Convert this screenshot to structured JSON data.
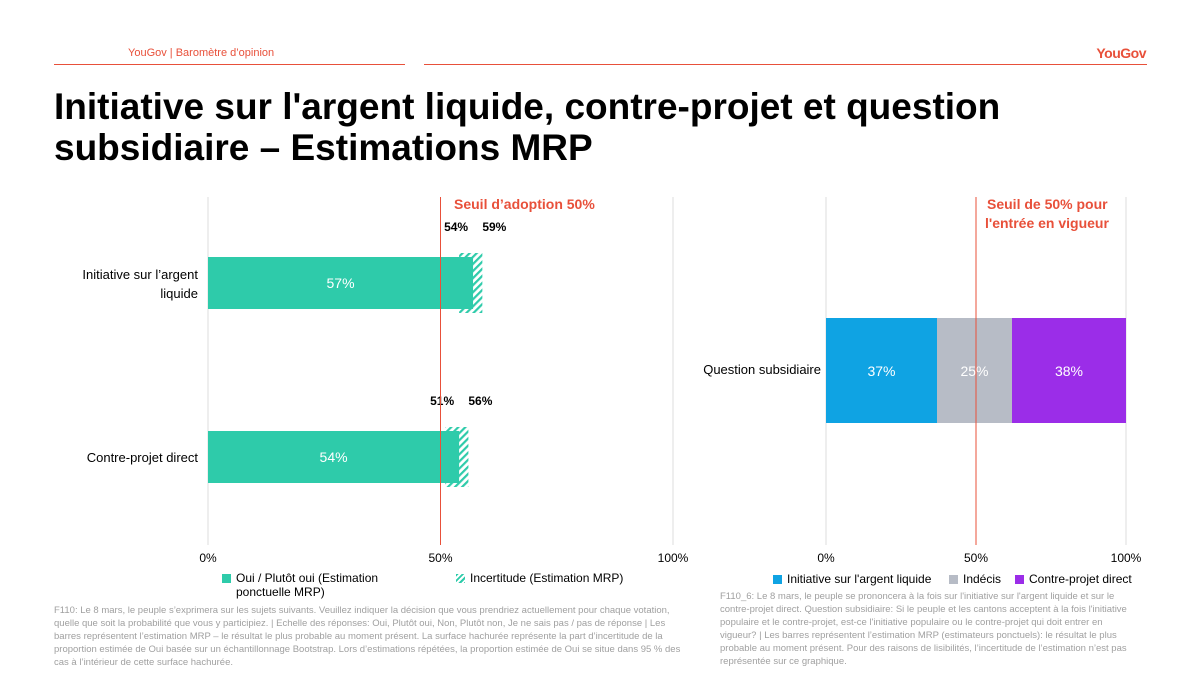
{
  "header": {
    "source": "YouGov | Baromètre d’opinion",
    "logo": "YouGov"
  },
  "title": "Initiative sur l'argent liquide, contre-projet et question subsidiaire – Estimations MRP",
  "chart_data": [
    {
      "type": "bar",
      "orientation": "horizontal",
      "categories": [
        "Initiative sur l’argent liquide",
        "Contre-projet direct"
      ],
      "values": [
        57,
        54
      ],
      "value_labels": [
        "57%",
        "54%"
      ],
      "uncertainty": [
        [
          54,
          59
        ],
        [
          51,
          56
        ]
      ],
      "uncertainty_labels": [
        [
          "54%",
          "59%"
        ],
        [
          "51%",
          "56%"
        ]
      ],
      "threshold": 50,
      "threshold_label": "Seuil d’adoption 50%",
      "xlim": [
        0,
        100
      ],
      "xticks": [
        "0%",
        "50%",
        "100%"
      ],
      "legend": [
        "Oui / Plutôt oui (Estimation ponctuelle MRP)",
        "Incertitude (Estimation MRP)"
      ],
      "colors": {
        "bar": "#2ecbaa",
        "threshold": "#e8503a"
      }
    },
    {
      "type": "bar",
      "orientation": "horizontal",
      "stacked": true,
      "categories": [
        "Question subsidiaire"
      ],
      "series": [
        {
          "name": "Initiative sur l'argent liquide",
          "values": [
            37
          ],
          "label": "37%",
          "color": "#0fa3e3"
        },
        {
          "name": "Indécis",
          "values": [
            25
          ],
          "label": "25%",
          "color": "#b7bcc6"
        },
        {
          "name": "Contre-projet direct",
          "values": [
            38
          ],
          "label": "38%",
          "color": "#9b2de8"
        }
      ],
      "threshold": 50,
      "threshold_label": [
        "Seuil de 50% pour",
        "l'entrée en vigueur"
      ],
      "xlim": [
        0,
        100
      ],
      "xticks": [
        "0%",
        "50%",
        "100%"
      ]
    }
  ],
  "footnotes": {
    "left": "F110: Le 8 mars, le peuple s’exprimera sur les sujets suivants. Veuillez indiquer la décision que vous prendriez actuellement pour chaque votation, quelle que soit la probabilité que vous y participiez. | Echelle des réponses: Oui, Plutôt oui, Non, Plutôt non, Je ne sais pas / pas de réponse | Les barres représentent l’estimation MRP – le résultat le plus probable au moment présent. La surface hachurée représente la part d’incertitude de la proportion estimée de Oui basée sur un échantillonnage Bootstrap. Lors d’estimations répétées, la proportion estimée de Oui se situe dans 95 % des cas à l’intérieur de cette surface hachurée.",
    "right": "F110_6: Le 8 mars, le peuple se prononcera à la fois sur l'initiative sur l'argent liquide et sur le contre-projet direct. Question subsidiaire: Si le peuple et les cantons acceptent à la fois l'initiative populaire et le contre-projet, est-ce l'initiative populaire ou le contre-projet qui doit entrer en vigueur? | Les barres représentent l’estimation MRP (estimateurs ponctuels): le résultat le plus probable au moment présent. Pour des raisons de lisibilités, l’incertitude de l’estimation n’est pas représentée sur ce graphique."
  }
}
